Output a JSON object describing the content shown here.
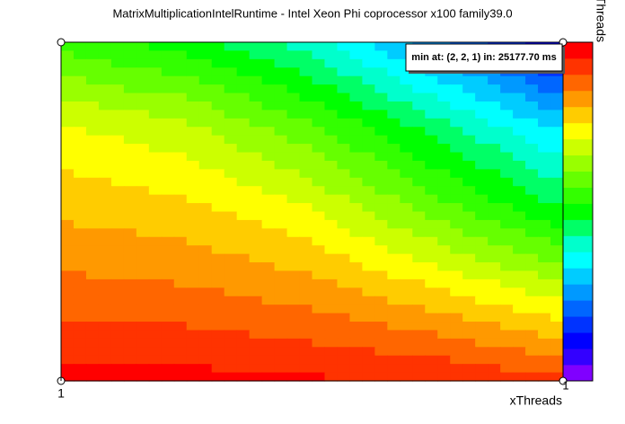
{
  "chart_data": {
    "type": "contour",
    "title": "MatrixMultiplicationIntelRuntime - Intel Xeon Phi coprocessor x100 family39.0",
    "xlabel": "xThreads",
    "ylabel": "yThreads",
    "xticks": [
      1
    ],
    "annotations": [
      "min at: (2, 2, 1) in: 25177.70 ms",
      "1"
    ],
    "zlim": [
      0,
      1
    ],
    "z": [
      [
        0.55,
        0.5,
        0.4,
        0.25,
        0.08
      ],
      [
        0.72,
        0.68,
        0.58,
        0.45,
        0.32
      ],
      [
        0.8,
        0.78,
        0.72,
        0.6,
        0.48
      ],
      [
        0.88,
        0.87,
        0.84,
        0.78,
        0.7
      ],
      [
        0.97,
        0.97,
        0.96,
        0.95,
        0.92
      ]
    ],
    "palette": [
      "#8000ff",
      "#3300ff",
      "#0000ff",
      "#0033ff",
      "#0066ff",
      "#0099ff",
      "#00ccff",
      "#00ffff",
      "#00ffcc",
      "#00ff66",
      "#00ff00",
      "#33ff00",
      "#66ff00",
      "#99ff00",
      "#ccff00",
      "#ffff00",
      "#ffcc00",
      "#ff9900",
      "#ff6600",
      "#ff3300",
      "#ff0000"
    ]
  }
}
